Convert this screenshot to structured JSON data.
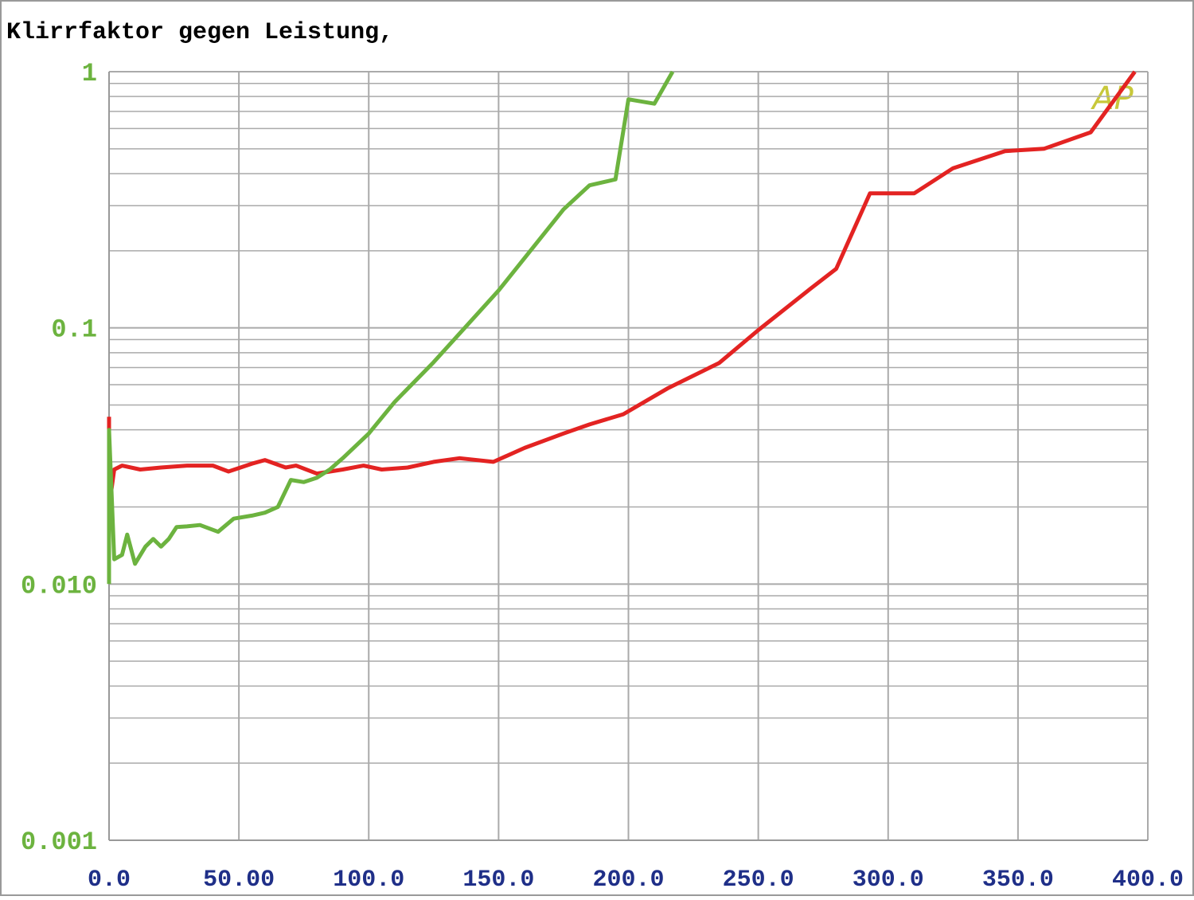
{
  "chart_data": {
    "type": "line",
    "title": "Klirrfaktor gegen Leistung,",
    "logo": "AP",
    "ylog": true,
    "grid": true,
    "xlim": [
      0,
      400
    ],
    "xticks": [
      {
        "value": 0,
        "label": "0.0"
      },
      {
        "value": 50,
        "label": "50.00"
      },
      {
        "value": 100,
        "label": "100.0"
      },
      {
        "value": 150,
        "label": "150.0"
      },
      {
        "value": 200,
        "label": "200.0"
      },
      {
        "value": 250,
        "label": "250.0"
      },
      {
        "value": 300,
        "label": "300.0"
      },
      {
        "value": 350,
        "label": "350.0"
      },
      {
        "value": 400,
        "label": "400.0"
      }
    ],
    "ylim": [
      0.001,
      1
    ],
    "yticks": [
      1,
      0.1,
      {
        "value": 0.01,
        "label": "0.010"
      },
      0.001
    ],
    "series": [
      {
        "color": "#e32322",
        "x": [
          0,
          0,
          2,
          5,
          12,
          20,
          30,
          40,
          46,
          55,
          60,
          68,
          72,
          80,
          90,
          98,
          105,
          115,
          125,
          135,
          148,
          160,
          175,
          185,
          198,
          215,
          235,
          250,
          270,
          280,
          293,
          310,
          325,
          345,
          360,
          378,
          395
        ],
        "values": [
          0.045,
          0.02,
          0.028,
          0.029,
          0.028,
          0.0285,
          0.029,
          0.029,
          0.0275,
          0.0295,
          0.0305,
          0.0285,
          0.029,
          0.027,
          0.028,
          0.029,
          0.028,
          0.0285,
          0.03,
          0.031,
          0.03,
          0.034,
          0.0387,
          0.042,
          0.046,
          0.058,
          0.073,
          0.098,
          0.142,
          0.17,
          0.335,
          0.335,
          0.42,
          0.49,
          0.5,
          0.58,
          1.0
        ]
      },
      {
        "color": "#6cb33f",
        "x": [
          0,
          0,
          2,
          5,
          7,
          10,
          14,
          17,
          20,
          23,
          26,
          30,
          35,
          42,
          48,
          55,
          60,
          65,
          70,
          75,
          80,
          85,
          90,
          100,
          110,
          125,
          150,
          175,
          185,
          195,
          200,
          210,
          217
        ],
        "values": [
          0.01,
          0.04,
          0.0125,
          0.013,
          0.0156,
          0.012,
          0.014,
          0.015,
          0.014,
          0.015,
          0.0167,
          0.0168,
          0.017,
          0.016,
          0.018,
          0.0185,
          0.019,
          0.02,
          0.0255,
          0.025,
          0.026,
          0.028,
          0.031,
          0.0387,
          0.0514,
          0.0735,
          0.14,
          0.29,
          0.36,
          0.38,
          0.78,
          0.75,
          1.0
        ]
      }
    ]
  }
}
